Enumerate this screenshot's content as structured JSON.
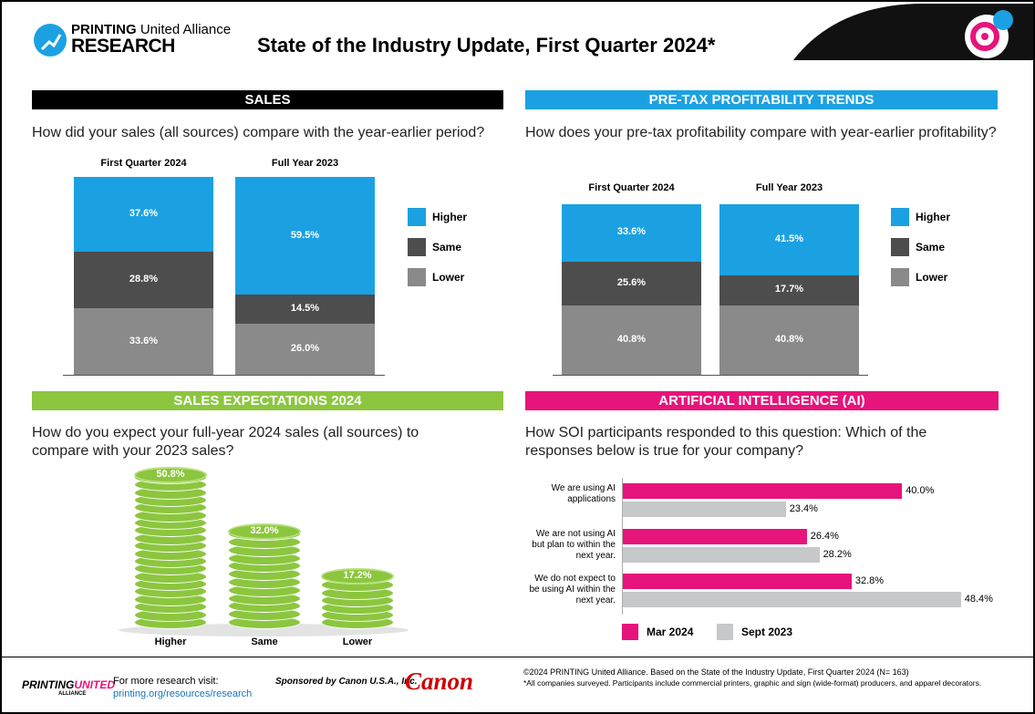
{
  "header": {
    "logo_bold": "PRINTING",
    "logo_light": "United Alliance",
    "logo_sub": "RESEARCH",
    "title": "State of the Industry Update, First Quarter 2024*"
  },
  "chart_data": [
    {
      "type": "stacked-bar",
      "title": "SALES",
      "subtitle": "How did your sales (all sources) compare with the year-earlier period?",
      "categories": [
        "First Quarter 2024",
        "Full Year 2023"
      ],
      "series": [
        {
          "name": "Higher",
          "color": "#1ba1e2",
          "values": [
            37.6,
            59.5
          ],
          "value_labels": [
            "37.6%",
            "59.5%"
          ]
        },
        {
          "name": "Same",
          "color": "#4d4d4d",
          "values": [
            28.8,
            14.5
          ],
          "value_labels": [
            "28.8%",
            "14.5%"
          ]
        },
        {
          "name": "Lower",
          "color": "#8a8a8a",
          "values": [
            33.6,
            26.0
          ],
          "value_labels": [
            "33.6%",
            "26.0%"
          ]
        }
      ]
    },
    {
      "type": "stacked-bar",
      "title": "PRE-TAX PROFITABILITY TRENDS",
      "subtitle": "How does your pre-tax profitability compare with year-earlier profitability?",
      "categories": [
        "First Quarter 2024",
        "Full Year 2023"
      ],
      "series": [
        {
          "name": "Higher",
          "color": "#1ba1e2",
          "values": [
            33.6,
            41.5
          ],
          "value_labels": [
            "33.6%",
            "41.5%"
          ]
        },
        {
          "name": "Same",
          "color": "#4d4d4d",
          "values": [
            25.6,
            17.7
          ],
          "value_labels": [
            "25.6%",
            "17.7%"
          ]
        },
        {
          "name": "Lower",
          "color": "#8a8a8a",
          "values": [
            40.8,
            40.8
          ],
          "value_labels": [
            "40.8%",
            "40.8%"
          ]
        }
      ]
    },
    {
      "type": "pictograph",
      "title": "SALES EXPECTATIONS 2024",
      "subtitle": "How do you expect your full-year 2024 sales (all sources) to compare with your 2023 sales?",
      "categories": [
        "Higher",
        "Same",
        "Lower"
      ],
      "values": [
        50.8,
        32.0,
        17.2
      ],
      "value_labels": [
        "50.8%",
        "32.0%",
        "17.2%"
      ],
      "color": "#8cc63f"
    },
    {
      "type": "horizontal-bar",
      "title": "ARTIFICIAL INTELLIGENCE (AI)",
      "subtitle": "How SOI participants responded to this question: Which of the responses below is true for your company?",
      "categories": [
        "We are using AI applications",
        "We are not using AI but plan to within the next year.",
        "We do not expect to be using AI within the next year."
      ],
      "series": [
        {
          "name": "Mar 2024",
          "color": "#e6147b",
          "values": [
            40.0,
            26.4,
            32.8
          ],
          "value_labels": [
            "40.0%",
            "26.4%",
            "32.8%"
          ]
        },
        {
          "name": "Sept 2023",
          "color": "#c7c8ca",
          "values": [
            23.4,
            28.2,
            48.4
          ],
          "value_labels": [
            "23.4%",
            "28.2%",
            "48.4%"
          ]
        }
      ]
    }
  ],
  "footer": {
    "logo_a": "PRINTING",
    "logo_b": "UNITED",
    "logo_c": "ALLIANCE",
    "visit": "For more research visit:",
    "url": "printing.org/resources/research",
    "sponsor": "Sponsored by Canon U.S.A., Inc.",
    "canon": "Canon",
    "copyright": "©2024 PRINTING United Alliance. Based on the State of the Industry Update, First Quarter 2024 (N= 163)",
    "note": "*All companies surveyed. Participants include commercial printers, graphic and sign (wide-format) producers, and apparel decorators."
  }
}
